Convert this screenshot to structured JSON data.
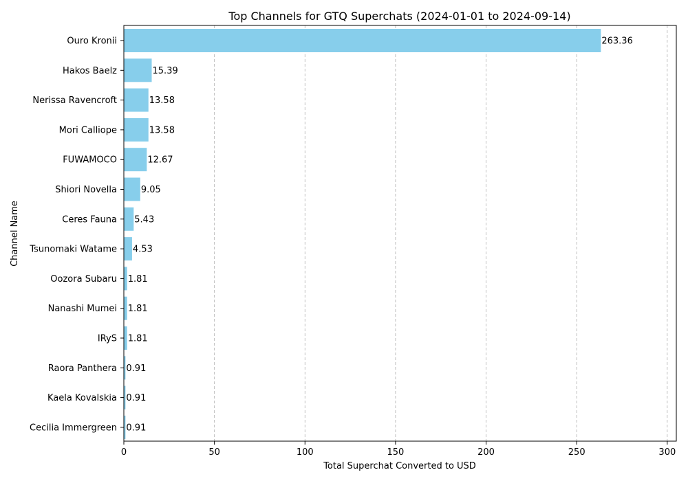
{
  "chart_data": {
    "type": "bar",
    "orientation": "horizontal",
    "title": "Top Channels for GTQ Superchats (2024-01-01 to 2024-09-14)",
    "xlabel": "Total Superchat Converted to USD",
    "ylabel": "Channel Name",
    "xlim": [
      0,
      305
    ],
    "xticks": [
      0,
      50,
      100,
      150,
      200,
      250,
      300
    ],
    "grid": "x-dashed",
    "bar_color": "#87ceeb",
    "categories": [
      "Ouro Kronii",
      "Hakos Baelz",
      "Nerissa Ravencroft",
      "Mori Calliope",
      "FUWAMOCO",
      "Shiori Novella",
      "Ceres Fauna",
      "Tsunomaki Watame",
      "Oozora Subaru",
      "Nanashi Mumei",
      "IRyS",
      "Raora Panthera",
      "Kaela Kovalskia",
      "Cecilia Immergreen"
    ],
    "values": [
      263.36,
      15.39,
      13.58,
      13.58,
      12.67,
      9.05,
      5.43,
      4.53,
      1.81,
      1.81,
      1.81,
      0.91,
      0.91,
      0.91
    ],
    "value_labels": [
      "263.36",
      "15.39",
      "13.58",
      "13.58",
      "12.67",
      "9.05",
      "5.43",
      "4.53",
      "1.81",
      "1.81",
      "1.81",
      "0.91",
      "0.91",
      "0.91"
    ]
  }
}
